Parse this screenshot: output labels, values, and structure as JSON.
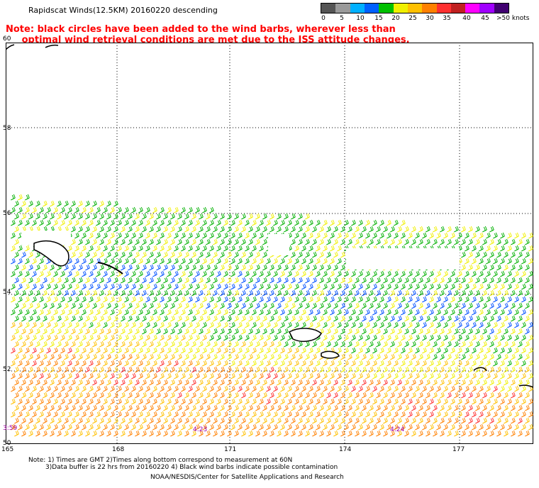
{
  "header": {
    "title": "Rapidscat Winds(12.5KM) 20160220 descending",
    "note_line1": "Note: black circles have been added to the wind barbs, wherever less than",
    "note_line2": "     optimal wind retrieval conditions are met due to the ISS attitude changes."
  },
  "legend": {
    "labels": [
      "0",
      "5",
      "10",
      "15",
      "20",
      "25",
      "30",
      "35",
      "40",
      "45",
      ">50 knots"
    ],
    "colors": [
      "#555555",
      "#9a9a9a",
      "#00b0ff",
      "#0060ff",
      "#00c000",
      "#f0f000",
      "#ffc000",
      "#ff8000",
      "#ff3030",
      "#c02020",
      "#ff00ff",
      "#a000ff",
      "#400070"
    ]
  },
  "axes": {
    "lat_labels": [
      "60",
      "58",
      "56",
      "54",
      "52",
      "50"
    ],
    "lon_labels": [
      "165",
      "168",
      "171",
      "174",
      "177"
    ]
  },
  "time_labels": [
    "3:59",
    "4:23",
    "4:24"
  ],
  "footer": {
    "line1": "Note: 1) Times are GMT 2)Times along bottom correspond to measurement at 60N",
    "line2": "3)Data buffer is 22 hrs from 20160220 4) Black wind barbs indicate possible contamination",
    "line3": "NOAA/NESDIS/Center for Satellite Applications and Research"
  }
}
